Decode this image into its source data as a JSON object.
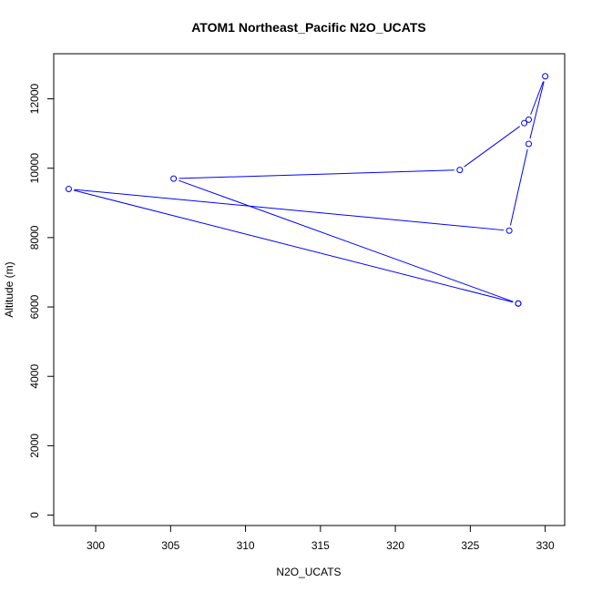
{
  "chart_data": {
    "type": "line",
    "title": "ATOM1 Northeast_Pacific N2O_UCATS",
    "xlabel": "N2O_UCATS",
    "ylabel": "Altitude (m)",
    "xlim": [
      297.2,
      331.3
    ],
    "ylim": [
      -300,
      13300
    ],
    "x_ticks": [
      300,
      305,
      310,
      315,
      320,
      325,
      330
    ],
    "y_ticks": [
      0,
      2000,
      4000,
      6000,
      8000,
      10000,
      12000
    ],
    "grid": false,
    "legend": "none",
    "series": [
      {
        "color": "#0000ff",
        "markers": "open-circle",
        "points": [
          {
            "x": 328.2,
            "y": 6100
          },
          {
            "x": 298.2,
            "y": 9400
          },
          {
            "x": 327.6,
            "y": 8200
          },
          {
            "x": 328.9,
            "y": 10700
          },
          {
            "x": 330.0,
            "y": 12650
          },
          {
            "x": 328.9,
            "y": 11400
          },
          {
            "x": 328.6,
            "y": 11300
          },
          {
            "x": 324.3,
            "y": 9950
          },
          {
            "x": 305.2,
            "y": 9700
          },
          {
            "x": 328.2,
            "y": 6100
          }
        ]
      }
    ]
  }
}
